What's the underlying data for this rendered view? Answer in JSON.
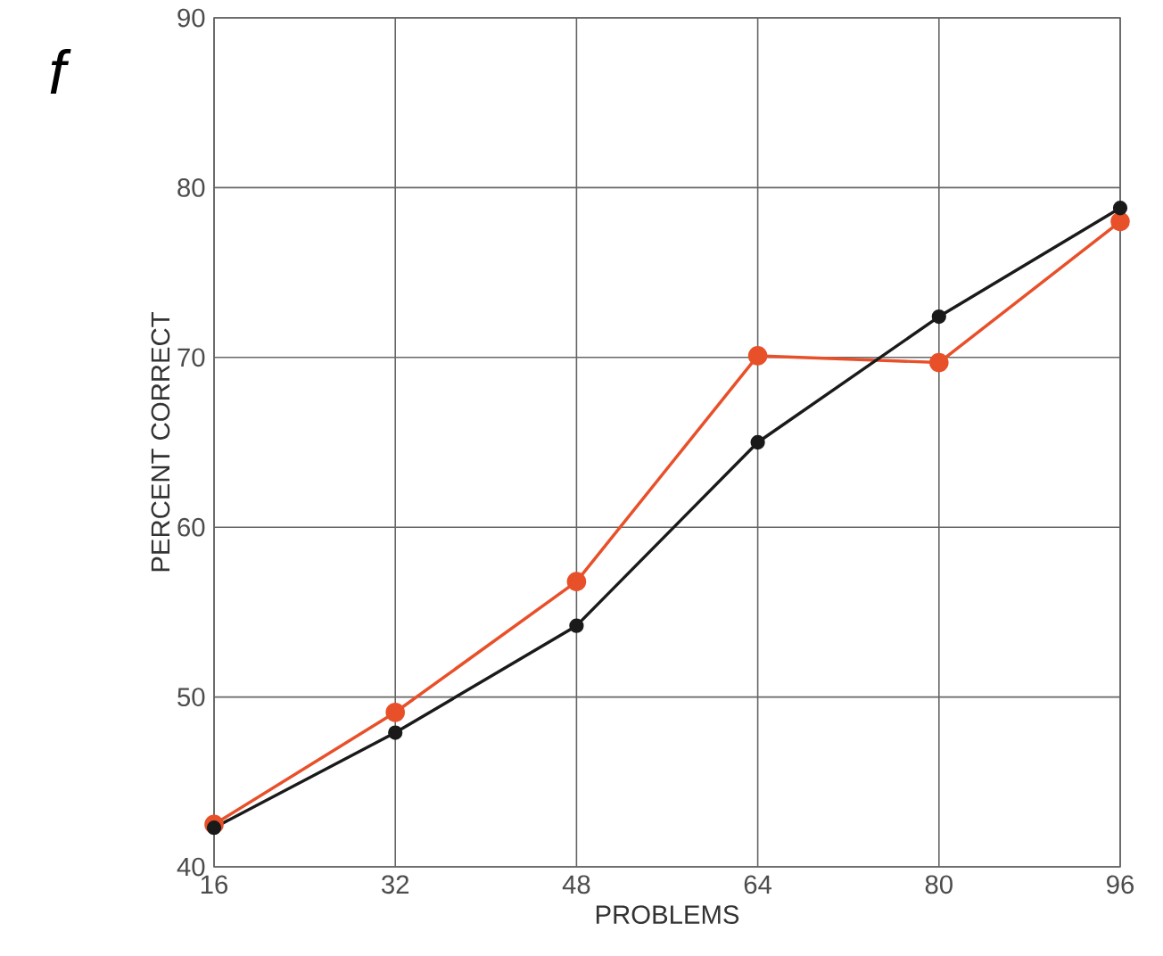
{
  "chart_data": {
    "type": "line",
    "xlabel": "PROBLEMS",
    "ylabel": "PERCENT CORRECT",
    "annotations": [
      "f"
    ],
    "x": [
      16,
      32,
      48,
      64,
      80,
      96
    ],
    "series": [
      {
        "color": "#e8502a",
        "values": [
          42.5,
          49.1,
          56.8,
          70.1,
          69.7,
          78.0
        ]
      },
      {
        "color": "#1a1a1a",
        "values": [
          42.3,
          47.9,
          54.2,
          65.0,
          72.4,
          78.8
        ]
      }
    ],
    "xlim": [
      16,
      96
    ],
    "ylim": [
      40,
      90
    ],
    "xticks": [
      16,
      32,
      48,
      64,
      80,
      96
    ],
    "yticks": [
      40,
      50,
      60,
      70,
      80,
      90
    ],
    "grid": true,
    "marker": "circle",
    "line_style": "solid"
  }
}
